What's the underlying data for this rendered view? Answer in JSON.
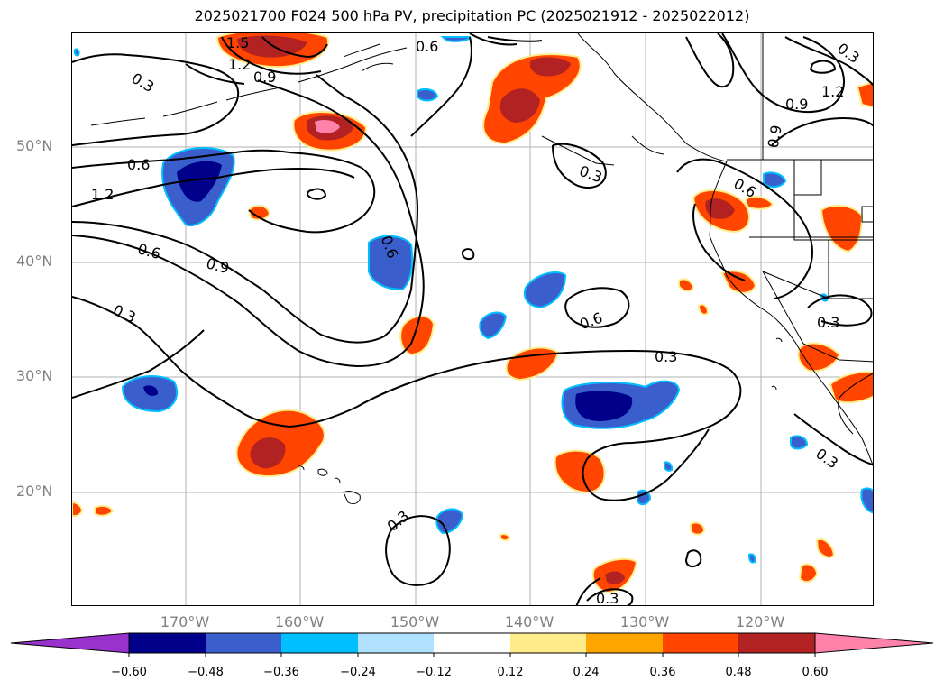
{
  "title": "2025021700 F024 500 hPa PV, precipitation PC (2025021912 - 2025022012)",
  "lat_labels": [
    "50°N",
    "40°N",
    "30°N",
    "20°N"
  ],
  "lon_labels": [
    "170°W",
    "160°W",
    "150°W",
    "140°W",
    "130°W",
    "120°W"
  ],
  "contour_labels": {
    "c1": "1.5",
    "c2": "1.2",
    "c3": "0.9",
    "c4": "0.6",
    "c5": "0.3",
    "c6": "0.6",
    "c7": "1.2",
    "c8": "0.6",
    "c9": "0.9",
    "c10": "0.3",
    "c11": "0.6",
    "c12": "0.3",
    "c13": "0.6",
    "c14": "0.3",
    "c15": "0.3",
    "c16": "0.3",
    "c17": "0.3",
    "c18": "0.9",
    "c19": "1.2",
    "c20": "0.9",
    "c21": "0.6",
    "c22": "0.3",
    "c23": "0.3"
  },
  "colorbar": {
    "ticks": [
      "−0.60",
      "−0.48",
      "−0.36",
      "−0.24",
      "−0.12",
      "0.12",
      "0.24",
      "0.36",
      "0.48",
      "0.60"
    ],
    "colors": [
      "#9932cc",
      "#00008b",
      "#3a5fcd",
      "#00bfff",
      "#b0e2ff",
      "#ffffff",
      "#ffec8b",
      "#ffa500",
      "#ff4500",
      "#b22222",
      "#ff82ab"
    ]
  }
}
